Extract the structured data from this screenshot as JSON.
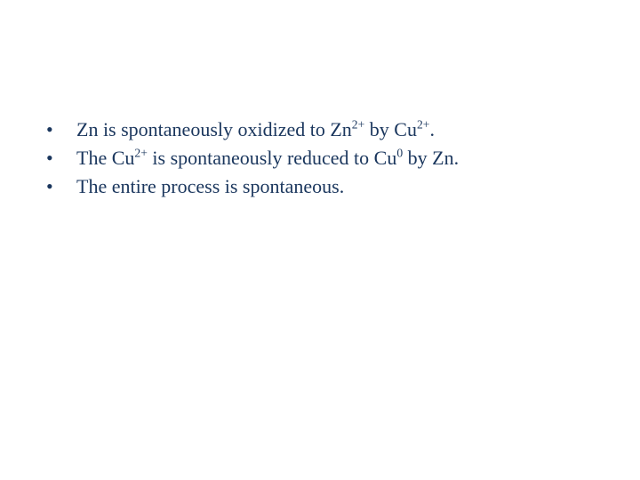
{
  "text_color": "#1a365d",
  "background_color": "#ffffff",
  "font_family": "Times New Roman",
  "font_size_pt": 22,
  "bullets": [
    {
      "segments": [
        {
          "t": "Zn is spontaneously oxidized to Zn"
        },
        {
          "t": "2+",
          "sup": true
        },
        {
          "t": " by Cu"
        },
        {
          "t": "2+",
          "sup": true
        },
        {
          "t": "."
        }
      ]
    },
    {
      "segments": [
        {
          "t": "The Cu"
        },
        {
          "t": "2+",
          "sup": true
        },
        {
          "t": " is spontaneously reduced to Cu"
        },
        {
          "t": "0",
          "sup": true
        },
        {
          "t": " by Zn."
        }
      ]
    },
    {
      "segments": [
        {
          "t": "The entire process is spontaneous."
        }
      ]
    }
  ]
}
